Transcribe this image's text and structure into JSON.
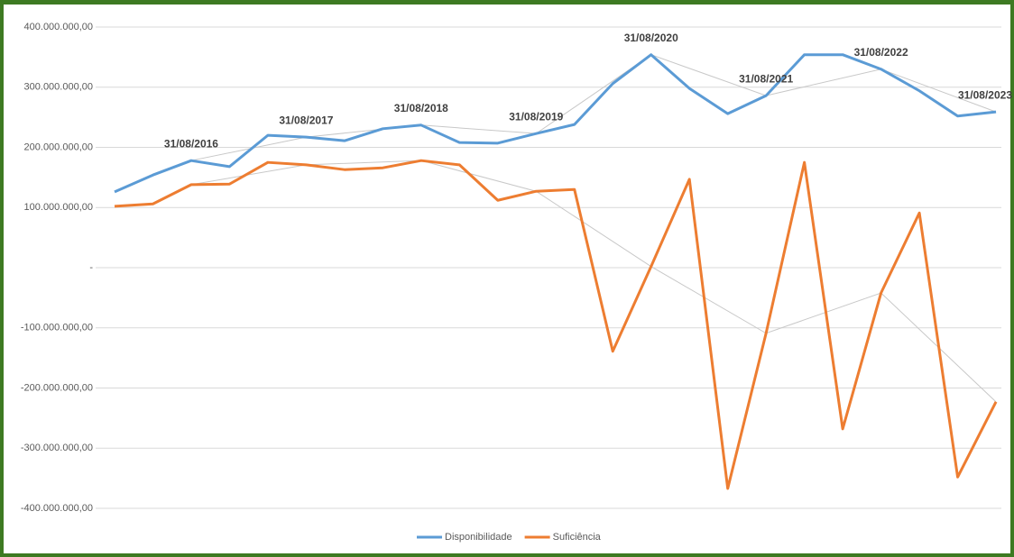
{
  "chart_data": {
    "type": "line",
    "categories": [
      null,
      null,
      null,
      null,
      null,
      null,
      null,
      null,
      null,
      null,
      null,
      null,
      null,
      null,
      null,
      null,
      null,
      null,
      null,
      null,
      null,
      null,
      null,
      null
    ],
    "series": [
      {
        "name": "Disponibilidade",
        "color": "#5b9bd5",
        "values": [
          126000000,
          154000000,
          178000000,
          168000000,
          220000000,
          217000000,
          211000000,
          231000000,
          237000000,
          208000000,
          207000000,
          223000000,
          238000000,
          306000000,
          354000000,
          298000000,
          256000000,
          286000000,
          354000000,
          354000000,
          330000000,
          294000000,
          252000000,
          259000000
        ]
      },
      {
        "name": "Suficiência",
        "color": "#ed7d31",
        "values": [
          102000000,
          106000000,
          138000000,
          139000000,
          175000000,
          171000000,
          163000000,
          166000000,
          178000000,
          171000000,
          112000000,
          127000000,
          130000000,
          -139000000,
          2000000,
          147000000,
          -367000000,
          -109000000,
          175000000,
          -268000000,
          -42000000,
          91000000,
          -348000000,
          -223000000
        ]
      }
    ],
    "annotations": [
      "31/08/2016",
      "31/08/2017",
      "31/08/2018",
      "31/08/2019",
      "31/08/2020",
      "31/08/2021",
      "31/08/2022",
      "31/08/2023"
    ],
    "ylim": [
      -400000000,
      400000000
    ],
    "yticks": [
      {
        "value": -400000000,
        "label": "-400.000.000,00"
      },
      {
        "value": -300000000,
        "label": "-300.000.000,00"
      },
      {
        "value": -200000000,
        "label": "-200.000.000,00"
      },
      {
        "value": -100000000,
        "label": "-100.000.000,00"
      },
      {
        "value": 0,
        "label": "-"
      },
      {
        "value": 100000000,
        "label": "100.000.000,00"
      },
      {
        "value": 200000000,
        "label": "200.000.000,00"
      },
      {
        "value": 300000000,
        "label": "300.000.000,00"
      },
      {
        "value": 400000000,
        "label": "400.000.000,00"
      }
    ],
    "grid": true,
    "legend": "bottom"
  }
}
